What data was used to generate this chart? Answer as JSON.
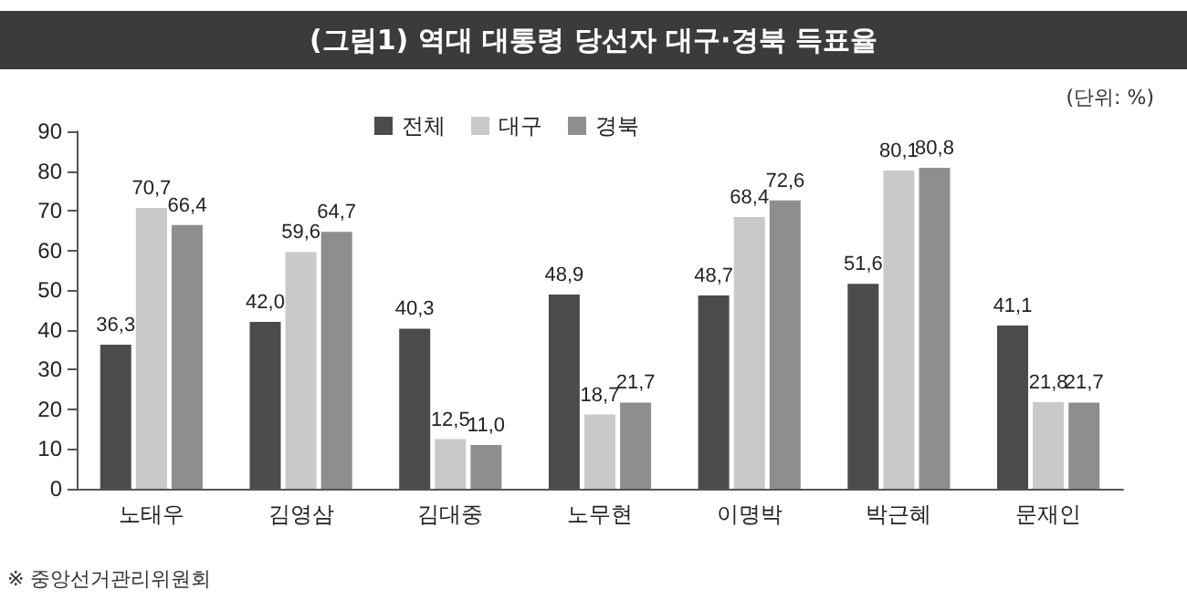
{
  "chart_data": {
    "type": "bar",
    "title": "(그림1) 역대 대통령 당선자 대구·경북 득표율",
    "annotations": [
      "(단위: %)",
      "※ 중앙선거관리위원회"
    ],
    "categories": [
      "노태우",
      "김영삼",
      "김대중",
      "노무현",
      "이명박",
      "박근혜",
      "문재인"
    ],
    "series": [
      {
        "name": "전체",
        "color": "#4b4b4d",
        "values": [
          36.3,
          42.0,
          40.3,
          48.9,
          48.7,
          51.6,
          41.1
        ],
        "value_labels": [
          "36,3",
          "42,0",
          "40,3",
          "48,9",
          "48,7",
          "51,6",
          "41,1"
        ]
      },
      {
        "name": "대구",
        "color": "#c9c9c9",
        "values": [
          70.7,
          59.6,
          12.5,
          18.7,
          68.4,
          80.1,
          21.8
        ],
        "value_labels": [
          "70,7",
          "59,6",
          "12,5",
          "18,7",
          "68,4",
          "80,1",
          "21,8"
        ]
      },
      {
        "name": "경북",
        "color": "#8e8e8e",
        "values": [
          66.4,
          64.7,
          11.0,
          21.7,
          72.6,
          80.8,
          21.7
        ],
        "value_labels": [
          "66,4",
          "64,7",
          "11,0",
          "21,7",
          "72,6",
          "80,8",
          "21,7"
        ]
      }
    ],
    "ylim": [
      0,
      90
    ],
    "yticks": [
      0,
      10,
      20,
      30,
      40,
      50,
      60,
      70,
      80,
      90
    ],
    "grid": false,
    "legend": "top"
  }
}
